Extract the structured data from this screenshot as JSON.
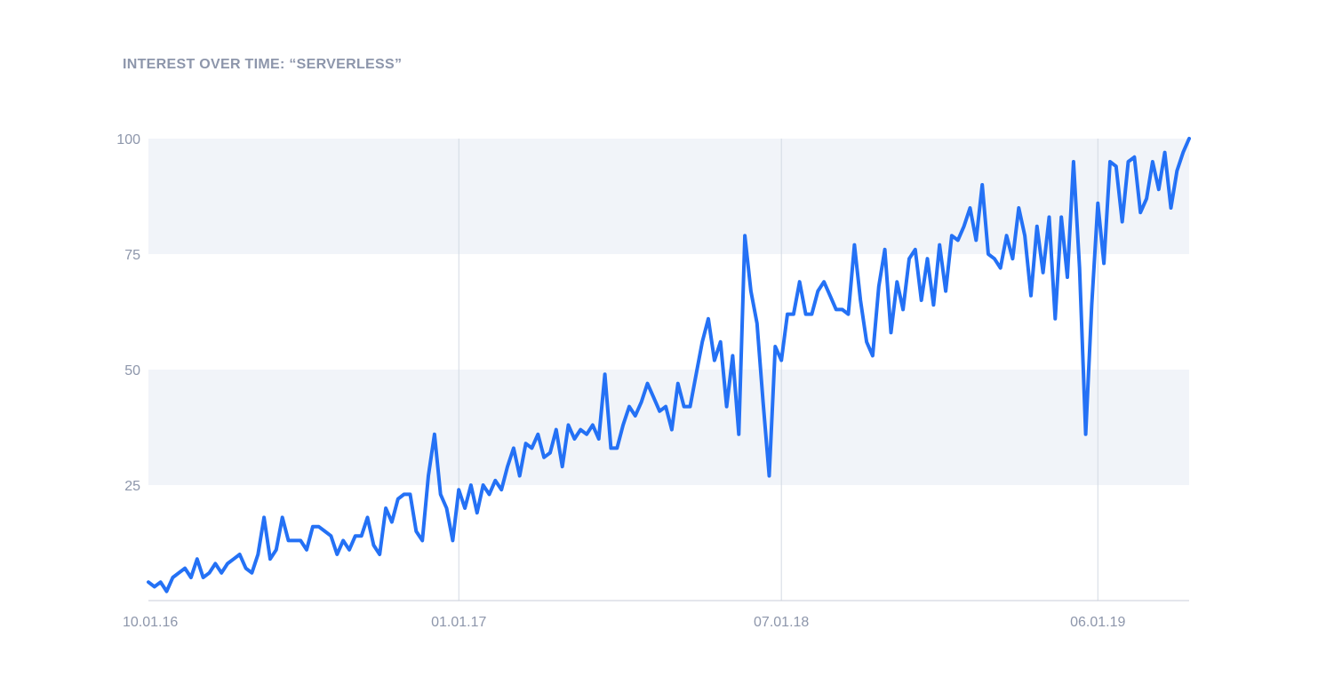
{
  "chart_data": {
    "type": "line",
    "title": "INTEREST OVER TIME: “SERVERLESS”",
    "xlabel": "",
    "ylabel": "",
    "ylim": [
      0,
      100
    ],
    "yticks": [
      "25",
      "50",
      "75",
      "100"
    ],
    "xticks": [
      {
        "label": "10.01.16",
        "index": 0
      },
      {
        "label": "01.01.17",
        "index": 51
      },
      {
        "label": "07.01.18",
        "index": 104
      },
      {
        "label": "06.01.19",
        "index": 156
      }
    ],
    "grid": "alternating horizontal bands with vertical gridlines at x ticks",
    "legend": "none",
    "colors": {
      "line": "#2471f5",
      "band": "#f1f4f9",
      "grid": "#d3d9e3",
      "axis": "#c9ced8",
      "text": "#8d96ab"
    },
    "values": [
      4,
      3,
      4,
      2,
      5,
      6,
      7,
      5,
      9,
      5,
      6,
      8,
      6,
      8,
      9,
      10,
      7,
      6,
      10,
      18,
      9,
      11,
      18,
      13,
      13,
      13,
      11,
      16,
      16,
      15,
      14,
      10,
      13,
      11,
      14,
      14,
      18,
      12,
      10,
      20,
      17,
      22,
      23,
      23,
      15,
      13,
      27,
      36,
      23,
      20,
      13,
      24,
      20,
      25,
      19,
      25,
      23,
      26,
      24,
      29,
      33,
      27,
      34,
      33,
      36,
      31,
      32,
      37,
      29,
      38,
      35,
      37,
      36,
      38,
      35,
      49,
      33,
      33,
      38,
      42,
      40,
      43,
      47,
      44,
      41,
      42,
      37,
      47,
      42,
      42,
      49,
      56,
      61,
      52,
      56,
      42,
      53,
      36,
      79,
      67,
      60,
      43,
      27,
      55,
      52,
      62,
      62,
      69,
      62,
      62,
      67,
      69,
      66,
      63,
      63,
      62,
      77,
      65,
      56,
      53,
      68,
      76,
      58,
      69,
      63,
      74,
      76,
      65,
      74,
      64,
      77,
      67,
      79,
      78,
      81,
      85,
      78,
      90,
      75,
      74,
      72,
      79,
      74,
      85,
      79,
      66,
      81,
      71,
      83,
      61,
      83,
      70,
      95,
      72,
      36,
      64,
      86,
      73,
      95,
      94,
      82,
      95,
      96,
      84,
      87,
      95,
      89,
      97,
      85,
      93,
      97,
      100
    ]
  }
}
